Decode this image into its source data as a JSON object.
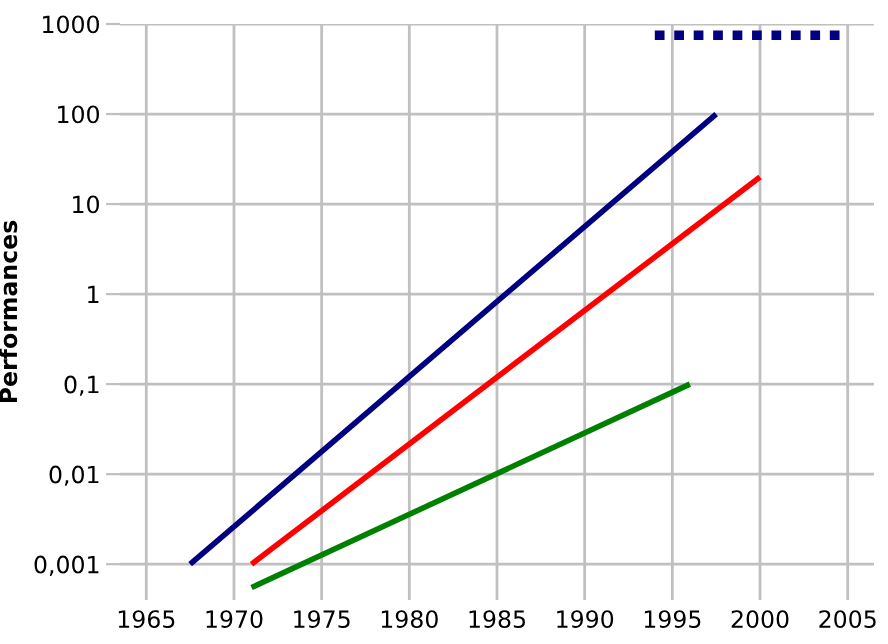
{
  "chart_data": {
    "type": "line",
    "ylabel": "Performances",
    "log": "y",
    "grid": true,
    "marker": "none",
    "xlim": [
      1963.5,
      2006.5
    ],
    "xticks": [
      1965,
      1970,
      1975,
      1980,
      1985,
      1990,
      1995,
      2000,
      2005
    ],
    "ylim": [
      0.0004,
      1000
    ],
    "yticks": [
      {
        "value": 0.001,
        "label": "0,001"
      },
      {
        "value": 0.01,
        "label": "0,01"
      },
      {
        "value": 0.1,
        "label": "0,1"
      },
      1,
      10,
      100,
      1000
    ],
    "series": [
      {
        "color": "#000080",
        "x": [
          1967.5,
          1997.5
        ],
        "values": [
          0.001,
          100
        ],
        "line_style": "solid"
      },
      {
        "color": "#ff0000",
        "x": [
          1971,
          2000
        ],
        "values": [
          0.001,
          20
        ],
        "line_style": "solid"
      },
      {
        "color": "#008000",
        "x": [
          1971,
          1996
        ],
        "values": [
          0.00055,
          0.1
        ],
        "line_style": "solid"
      },
      {
        "color": "#000080",
        "x": [
          1994,
          2005
        ],
        "values": [
          750,
          750
        ],
        "line_style": "dotted"
      }
    ]
  }
}
